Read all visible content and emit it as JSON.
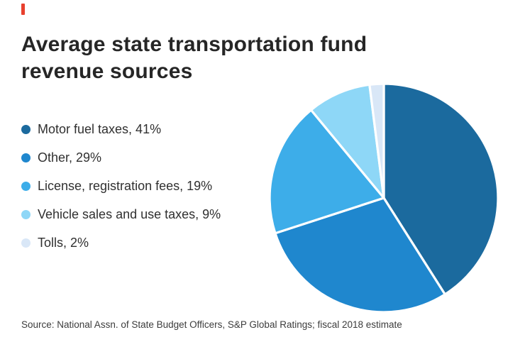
{
  "accent_color": "#e8402e",
  "title": "Average state transportation fund revenue sources",
  "source": "Source: National Assn. of State Budget Officers, S&P Global Ratings; fiscal 2018 estimate",
  "chart_data": {
    "type": "pie",
    "title": "Average state transportation fund revenue sources",
    "legend_position": "left",
    "start_angle_deg": 0,
    "direction": "clockwise",
    "slice_gap_color": "#ffffff",
    "slices": [
      {
        "label": "Motor fuel taxes",
        "value": 41,
        "display": "Motor fuel taxes, 41%",
        "color": "#1b6a9e"
      },
      {
        "label": "Other",
        "value": 29,
        "display": "Other, 29%",
        "color": "#1f87ce"
      },
      {
        "label": "License, registration fees",
        "value": 19,
        "display": "License, registration fees, 19%",
        "color": "#3dade9"
      },
      {
        "label": "Vehicle sales and use taxes",
        "value": 9,
        "display": "Vehicle sales and use taxes, 9%",
        "color": "#8ed7f7"
      },
      {
        "label": "Tolls",
        "value": 2,
        "display": "Tolls, 2%",
        "color": "#d9e7f7"
      }
    ]
  }
}
